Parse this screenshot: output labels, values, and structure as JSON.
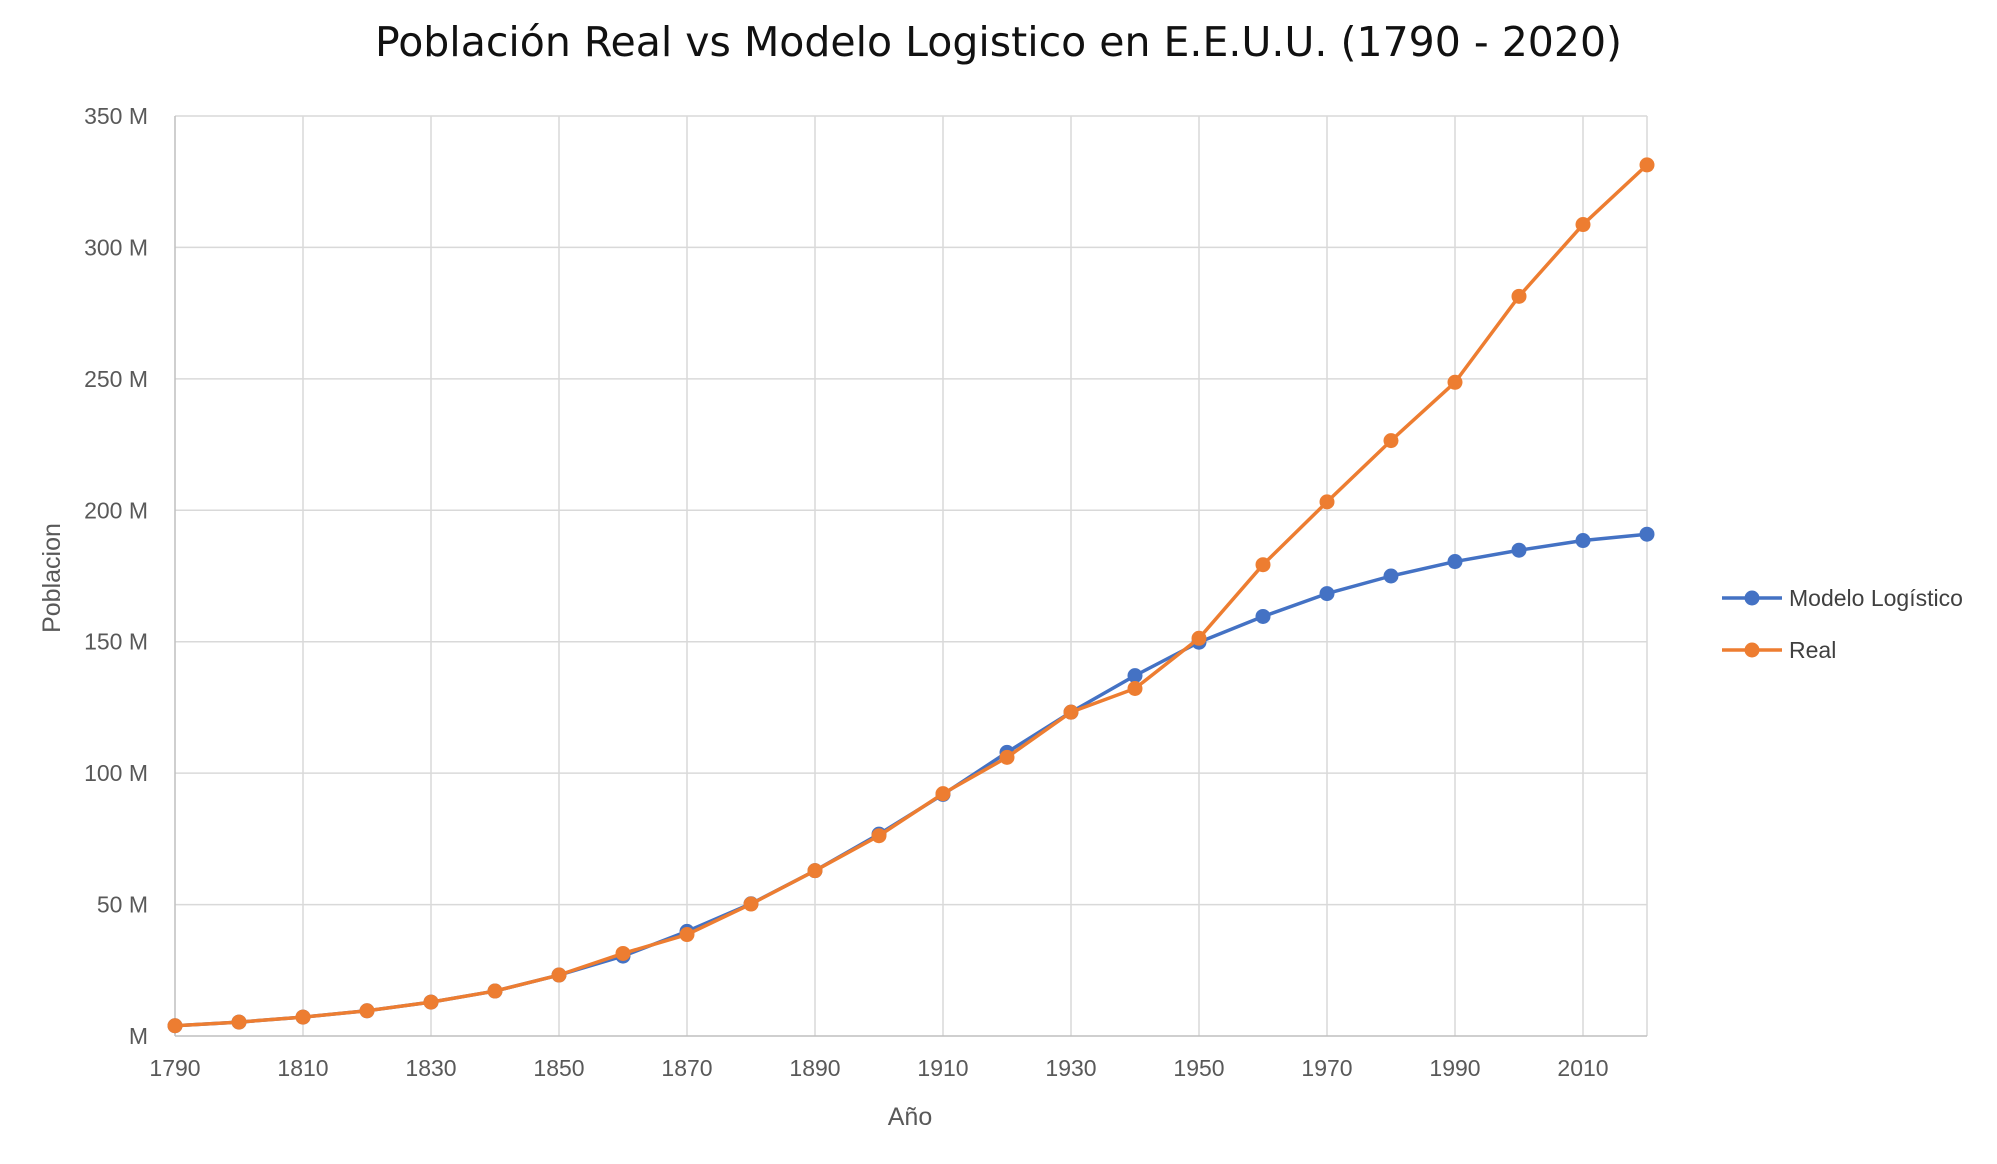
{
  "chart_data": {
    "type": "line",
    "title": "Población Real vs Modelo Logistico en E.E.U.U. (1790  - 2020)",
    "xlabel": "Año",
    "ylabel": "Poblacion",
    "x": [
      1790,
      1800,
      1810,
      1820,
      1830,
      1840,
      1850,
      1860,
      1870,
      1880,
      1890,
      1900,
      1910,
      1920,
      1930,
      1940,
      1950,
      1960,
      1970,
      1980,
      1990,
      2000,
      2010,
      2020
    ],
    "xlim": [
      1790,
      2020
    ],
    "xticks": [
      1790,
      1810,
      1830,
      1850,
      1870,
      1890,
      1910,
      1930,
      1950,
      1970,
      1990,
      2010
    ],
    "xtick_labels": [
      "1790",
      "1810",
      "1830",
      "1850",
      "1870",
      "1890",
      "1910",
      "1930",
      "1950",
      "1970",
      "1990",
      "2010"
    ],
    "ylim": [
      0,
      350
    ],
    "yticks": [
      0,
      50,
      100,
      150,
      200,
      250,
      300,
      350
    ],
    "ytick_labels": [
      "M",
      "50 M",
      "100 M",
      "150 M",
      "200 M",
      "250 M",
      "300 M",
      "350 M"
    ],
    "y_unit": "millions",
    "grid": true,
    "legend_position": "right",
    "series": [
      {
        "name": "Modelo Logístico",
        "color": "#4472C4",
        "values": [
          3.9,
          5.3,
          7.2,
          9.6,
          12.9,
          17.1,
          23.2,
          30.4,
          39.8,
          50.3,
          62.9,
          76.8,
          91.9,
          107.9,
          123.2,
          137.1,
          149.8,
          159.6,
          168.3,
          175.0,
          180.5,
          184.8,
          188.5,
          190.9
        ]
      },
      {
        "name": "Real",
        "color": "#ED7D31",
        "values": [
          3.9,
          5.3,
          7.2,
          9.6,
          12.9,
          17.1,
          23.2,
          31.4,
          38.6,
          50.2,
          62.9,
          76.2,
          92.2,
          106.0,
          123.2,
          132.2,
          151.3,
          179.3,
          203.2,
          226.5,
          248.7,
          281.4,
          308.7,
          331.4
        ]
      }
    ]
  }
}
